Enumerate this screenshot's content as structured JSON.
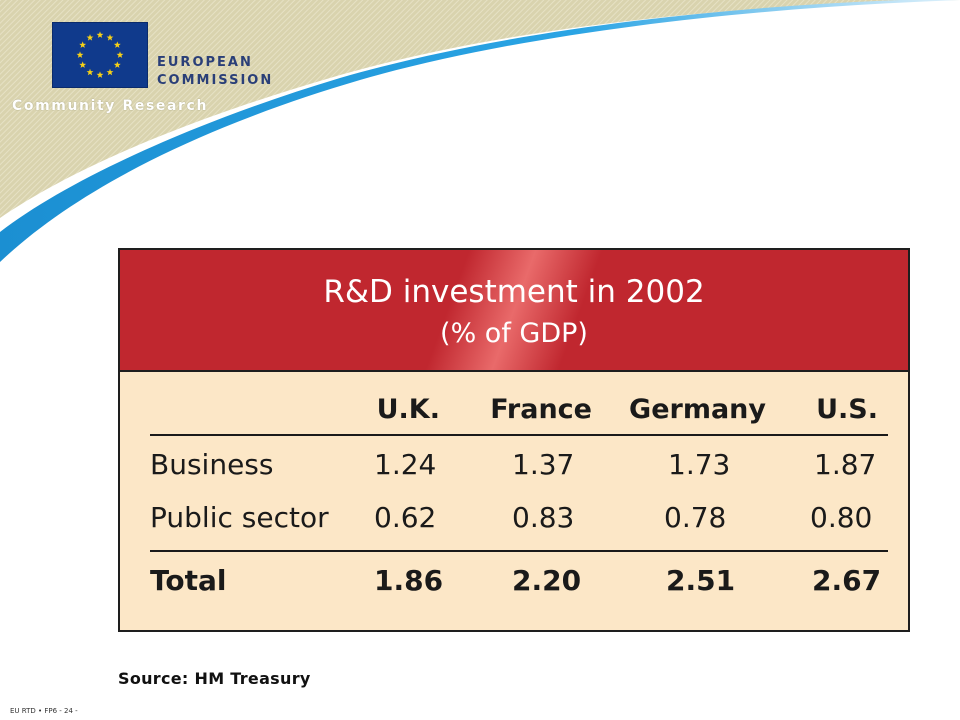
{
  "header": {
    "org_line1": "EUROPEAN",
    "org_line2": "COMMISSION",
    "program": "Community Research",
    "logo_icon": "eu-flag-icon",
    "colors": {
      "logo_blue": "#103a8c",
      "star_yellow": "#f7d117",
      "swoosh_blue": "#1e95d6",
      "band_beige": "#d8d2ac"
    }
  },
  "table": {
    "title": "R&D investment in 2002",
    "subtitle": "(% of GDP)",
    "columns": [
      "U.K.",
      "France",
      "Germany",
      "U.S."
    ],
    "rows": [
      {
        "label": "Business",
        "values": [
          "1.24",
          "1.37",
          "1.73",
          "1.87"
        ]
      },
      {
        "label": "Public sector",
        "values": [
          "0.62",
          "0.83",
          "0.78",
          "0.80"
        ]
      }
    ],
    "total": {
      "label": "Total",
      "values": [
        "1.86",
        "2.20",
        "2.51",
        "2.67"
      ]
    },
    "colors": {
      "header_red": "#c0272f",
      "body_cream": "#fce7c7"
    }
  },
  "source": "Source: HM Treasury",
  "footer": "EU RTD • FP6 - 24 -"
}
